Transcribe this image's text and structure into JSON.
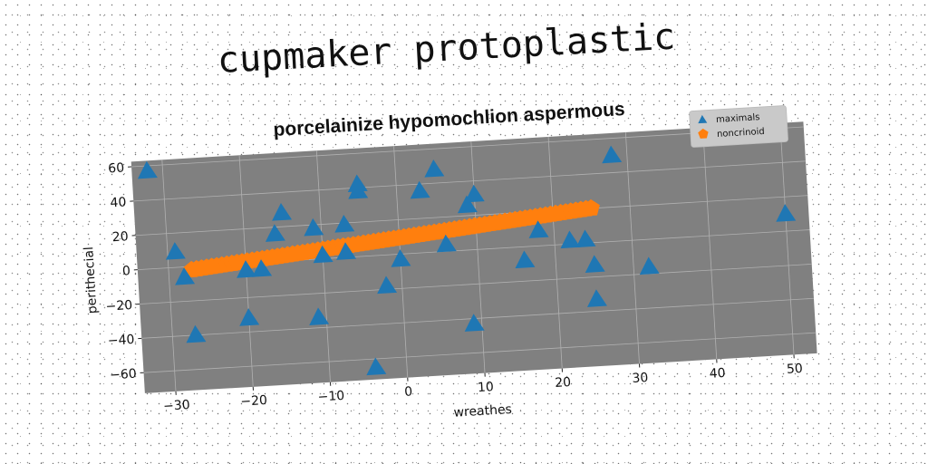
{
  "header": {
    "title": "cupmaker protoplastic"
  },
  "chart_data": {
    "type": "scatter",
    "title": "porcelainize hypomochlion aspermous",
    "xlabel": "wreathes",
    "ylabel": "perithecial",
    "xlim": [
      -34,
      53
    ],
    "ylim": [
      -72,
      63
    ],
    "xticks": [
      "−30",
      "−20",
      "−10",
      "0",
      "10",
      "20",
      "30",
      "40",
      "50"
    ],
    "xtick_values": [
      -30,
      -20,
      -10,
      0,
      10,
      20,
      30,
      40,
      50
    ],
    "yticks": [
      "60",
      "40",
      "20",
      "0",
      "−20",
      "−40",
      "−60"
    ],
    "ytick_values": [
      60,
      40,
      20,
      0,
      -20,
      -40,
      -60
    ],
    "grid": true,
    "legend_position": "upper-right",
    "background_color": "#808080",
    "series": [
      {
        "name": "maximals",
        "marker": "triangle",
        "color": "#1f77b4",
        "points": [
          [
            -32,
            57
          ],
          [
            -29,
            9
          ],
          [
            -28,
            -6
          ],
          [
            -27,
            -40
          ],
          [
            -20,
            -32
          ],
          [
            -20,
            -4
          ],
          [
            -18,
            -4
          ],
          [
            -16,
            16
          ],
          [
            -15,
            28
          ],
          [
            -11,
            -34
          ],
          [
            -11,
            18
          ],
          [
            -10,
            2
          ],
          [
            -7,
            3
          ],
          [
            -7,
            19
          ],
          [
            -5,
            42
          ],
          [
            -5,
            38
          ],
          [
            -4,
            -65
          ],
          [
            -2,
            -18
          ],
          [
            0,
            -3
          ],
          [
            3,
            36
          ],
          [
            5,
            48
          ],
          [
            6,
            4
          ],
          [
            9,
            26
          ],
          [
            9,
            -43
          ],
          [
            10,
            32
          ],
          [
            16,
            -8
          ],
          [
            18,
            9
          ],
          [
            22,
            2
          ],
          [
            24,
            2
          ],
          [
            25,
            -13
          ],
          [
            25,
            -33
          ],
          [
            28,
            50
          ],
          [
            32,
            -16
          ],
          [
            50,
            10
          ]
        ]
      },
      {
        "name": "noncrinoid",
        "marker": "pentagon",
        "color": "#ff7f0e",
        "x_range": [
          -27,
          25
        ],
        "y_range": [
          -2,
          20
        ],
        "n_points": 80
      }
    ]
  }
}
